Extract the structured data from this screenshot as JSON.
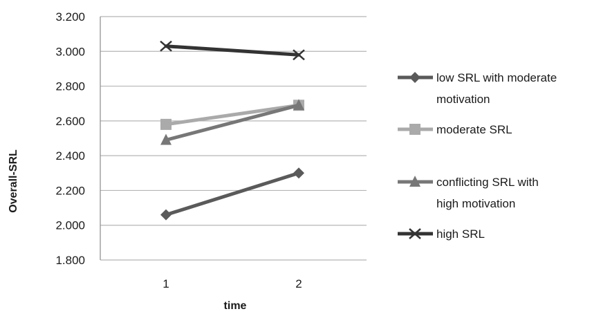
{
  "chart_data": {
    "type": "line",
    "title": "",
    "xlabel": "time",
    "ylabel": "Overall-SRL",
    "categories": [
      "1",
      "2"
    ],
    "ylim": [
      1.8,
      3.2
    ],
    "yticks": [
      "1.800",
      "2.000",
      "2.200",
      "2.400",
      "2.600",
      "2.800",
      "3.000",
      "3.200"
    ],
    "grid": true,
    "legend_position": "right",
    "series": [
      {
        "name": "low SRL with moderate motivation",
        "legend_lines": [
          "low SRL with moderate",
          "motivation"
        ],
        "values": [
          2.06,
          2.3
        ],
        "color": "#5a5a5a",
        "marker": "diamond"
      },
      {
        "name": "moderate SRL",
        "legend_lines": [
          "moderate SRL"
        ],
        "values": [
          2.58,
          2.69
        ],
        "color": "#aaaaaa",
        "marker": "square"
      },
      {
        "name": "conflicting SRL with high motivation",
        "legend_lines": [
          "conflicting SRL with",
          "high motivation"
        ],
        "values": [
          2.49,
          2.69
        ],
        "color": "#777777",
        "marker": "triangle"
      },
      {
        "name": "high SRL",
        "legend_lines": [
          "high SRL"
        ],
        "values": [
          3.03,
          2.98
        ],
        "color": "#333333",
        "marker": "x"
      }
    ]
  }
}
